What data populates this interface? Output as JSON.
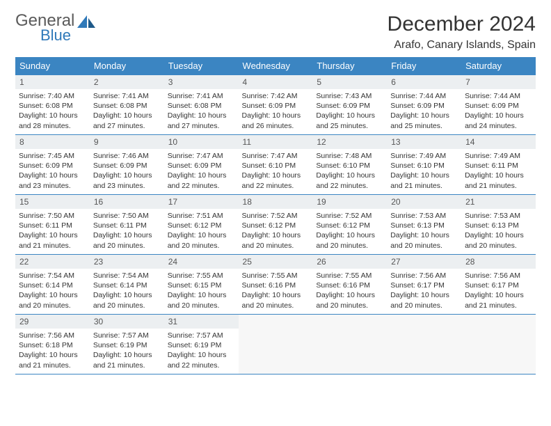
{
  "brand": {
    "line1": "General",
    "line2": "Blue",
    "icon_color": "#2f79b9",
    "text_gray": "#5a5a5a"
  },
  "title": "December 2024",
  "location": "Arafo, Canary Islands, Spain",
  "colors": {
    "header_bg": "#3b85c2",
    "header_text": "#ffffff",
    "daynum_bg": "#eceff1",
    "border": "#3b85c2",
    "body_text": "#333333"
  },
  "day_headers": [
    "Sunday",
    "Monday",
    "Tuesday",
    "Wednesday",
    "Thursday",
    "Friday",
    "Saturday"
  ],
  "weeks": [
    [
      {
        "n": "1",
        "sunrise": "7:40 AM",
        "sunset": "6:08 PM",
        "day_h": 10,
        "day_m": 28
      },
      {
        "n": "2",
        "sunrise": "7:41 AM",
        "sunset": "6:08 PM",
        "day_h": 10,
        "day_m": 27
      },
      {
        "n": "3",
        "sunrise": "7:41 AM",
        "sunset": "6:08 PM",
        "day_h": 10,
        "day_m": 27
      },
      {
        "n": "4",
        "sunrise": "7:42 AM",
        "sunset": "6:09 PM",
        "day_h": 10,
        "day_m": 26
      },
      {
        "n": "5",
        "sunrise": "7:43 AM",
        "sunset": "6:09 PM",
        "day_h": 10,
        "day_m": 25
      },
      {
        "n": "6",
        "sunrise": "7:44 AM",
        "sunset": "6:09 PM",
        "day_h": 10,
        "day_m": 25
      },
      {
        "n": "7",
        "sunrise": "7:44 AM",
        "sunset": "6:09 PM",
        "day_h": 10,
        "day_m": 24
      }
    ],
    [
      {
        "n": "8",
        "sunrise": "7:45 AM",
        "sunset": "6:09 PM",
        "day_h": 10,
        "day_m": 23
      },
      {
        "n": "9",
        "sunrise": "7:46 AM",
        "sunset": "6:09 PM",
        "day_h": 10,
        "day_m": 23
      },
      {
        "n": "10",
        "sunrise": "7:47 AM",
        "sunset": "6:09 PM",
        "day_h": 10,
        "day_m": 22
      },
      {
        "n": "11",
        "sunrise": "7:47 AM",
        "sunset": "6:10 PM",
        "day_h": 10,
        "day_m": 22
      },
      {
        "n": "12",
        "sunrise": "7:48 AM",
        "sunset": "6:10 PM",
        "day_h": 10,
        "day_m": 22
      },
      {
        "n": "13",
        "sunrise": "7:49 AM",
        "sunset": "6:10 PM",
        "day_h": 10,
        "day_m": 21
      },
      {
        "n": "14",
        "sunrise": "7:49 AM",
        "sunset": "6:11 PM",
        "day_h": 10,
        "day_m": 21
      }
    ],
    [
      {
        "n": "15",
        "sunrise": "7:50 AM",
        "sunset": "6:11 PM",
        "day_h": 10,
        "day_m": 21
      },
      {
        "n": "16",
        "sunrise": "7:50 AM",
        "sunset": "6:11 PM",
        "day_h": 10,
        "day_m": 20
      },
      {
        "n": "17",
        "sunrise": "7:51 AM",
        "sunset": "6:12 PM",
        "day_h": 10,
        "day_m": 20
      },
      {
        "n": "18",
        "sunrise": "7:52 AM",
        "sunset": "6:12 PM",
        "day_h": 10,
        "day_m": 20
      },
      {
        "n": "19",
        "sunrise": "7:52 AM",
        "sunset": "6:12 PM",
        "day_h": 10,
        "day_m": 20
      },
      {
        "n": "20",
        "sunrise": "7:53 AM",
        "sunset": "6:13 PM",
        "day_h": 10,
        "day_m": 20
      },
      {
        "n": "21",
        "sunrise": "7:53 AM",
        "sunset": "6:13 PM",
        "day_h": 10,
        "day_m": 20
      }
    ],
    [
      {
        "n": "22",
        "sunrise": "7:54 AM",
        "sunset": "6:14 PM",
        "day_h": 10,
        "day_m": 20
      },
      {
        "n": "23",
        "sunrise": "7:54 AM",
        "sunset": "6:14 PM",
        "day_h": 10,
        "day_m": 20
      },
      {
        "n": "24",
        "sunrise": "7:55 AM",
        "sunset": "6:15 PM",
        "day_h": 10,
        "day_m": 20
      },
      {
        "n": "25",
        "sunrise": "7:55 AM",
        "sunset": "6:16 PM",
        "day_h": 10,
        "day_m": 20
      },
      {
        "n": "26",
        "sunrise": "7:55 AM",
        "sunset": "6:16 PM",
        "day_h": 10,
        "day_m": 20
      },
      {
        "n": "27",
        "sunrise": "7:56 AM",
        "sunset": "6:17 PM",
        "day_h": 10,
        "day_m": 20
      },
      {
        "n": "28",
        "sunrise": "7:56 AM",
        "sunset": "6:17 PM",
        "day_h": 10,
        "day_m": 21
      }
    ],
    [
      {
        "n": "29",
        "sunrise": "7:56 AM",
        "sunset": "6:18 PM",
        "day_h": 10,
        "day_m": 21
      },
      {
        "n": "30",
        "sunrise": "7:57 AM",
        "sunset": "6:19 PM",
        "day_h": 10,
        "day_m": 21
      },
      {
        "n": "31",
        "sunrise": "7:57 AM",
        "sunset": "6:19 PM",
        "day_h": 10,
        "day_m": 22
      },
      null,
      null,
      null,
      null
    ]
  ],
  "labels": {
    "sunrise": "Sunrise:",
    "sunset": "Sunset:",
    "daylight": "Daylight:",
    "hours": "hours",
    "and": "and",
    "minutes": "minutes."
  }
}
